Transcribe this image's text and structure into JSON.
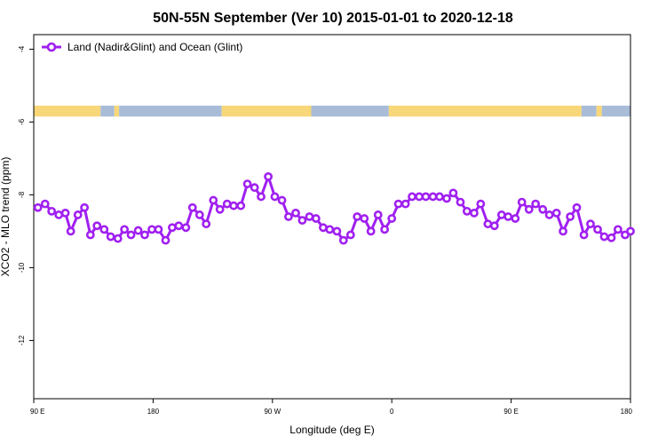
{
  "chart_data": {
    "type": "line",
    "title": "50N-55N September (Ver 10)   2015-01-01 to 2020-12-18",
    "xlabel": "Longitude (deg E)",
    "ylabel": "XCO2 - MLO trend (ppm)",
    "xlim": [
      0,
      100
    ],
    "ylim": [
      -13.6,
      -3.6
    ],
    "x_ticks": [
      {
        "label": "90 E",
        "value": 0
      },
      {
        "label": "180",
        "value": 20
      },
      {
        "label": "90 W",
        "value": 40
      },
      {
        "label": "0",
        "value": 60
      },
      {
        "label": "90 E",
        "value": 80
      },
      {
        "label": "180",
        "value": 100
      }
    ],
    "y_ticks": [
      {
        "label": "-4",
        "value": -4
      },
      {
        "label": "-6",
        "value": -6
      },
      {
        "label": "-8",
        "value": -8
      },
      {
        "label": "-10",
        "value": -10
      },
      {
        "label": "-12",
        "value": -12
      }
    ],
    "legend": {
      "position": "top-left",
      "entries": [
        "Land (Nadir&Glint) and Ocean (Glint)"
      ]
    },
    "colors": {
      "series": "#a020f0",
      "land": "#f8d77a",
      "ocean": "#a8bcd8",
      "background": "#ffffff"
    },
    "surface_strip": {
      "y_range": [
        -5.85,
        -5.55
      ],
      "segments": [
        {
          "type": "land",
          "x0": 0,
          "x1": 11.2
        },
        {
          "type": "ocean",
          "x0": 11.2,
          "x1": 13.5
        },
        {
          "type": "land",
          "x0": 13.5,
          "x1": 14.3
        },
        {
          "type": "ocean",
          "x0": 14.3,
          "x1": 31.5
        },
        {
          "type": "land",
          "x0": 31.5,
          "x1": 46.5
        },
        {
          "type": "ocean",
          "x0": 46.5,
          "x1": 59.5
        },
        {
          "type": "land",
          "x0": 59.5,
          "x1": 91.8
        },
        {
          "type": "ocean",
          "x0": 91.8,
          "x1": 94.3
        },
        {
          "type": "land",
          "x0": 94.3,
          "x1": 95.2
        },
        {
          "type": "ocean",
          "x0": 95.2,
          "x1": 100
        }
      ]
    },
    "series": [
      {
        "name": "Land (Nadir&Glint) and Ocean (Glint)",
        "x": [
          0.7,
          1.9,
          3.0,
          4.2,
          5.3,
          6.2,
          7.4,
          8.5,
          9.5,
          10.6,
          11.8,
          12.9,
          14.1,
          15.2,
          16.3,
          17.5,
          18.6,
          19.8,
          20.9,
          22.1,
          23.2,
          24.3,
          25.5,
          26.6,
          27.8,
          28.9,
          30.1,
          31.2,
          32.4,
          33.5,
          34.7,
          35.8,
          37.0,
          38.1,
          39.3,
          40.4,
          41.6,
          42.7,
          43.9,
          45.0,
          46.2,
          47.3,
          48.5,
          49.6,
          50.8,
          51.9,
          53.1,
          54.2,
          55.4,
          56.5,
          57.7,
          58.8,
          60.0,
          61.1,
          62.3,
          63.4,
          64.6,
          65.7,
          66.9,
          68.0,
          69.2,
          70.3,
          71.5,
          72.6,
          73.8,
          74.9,
          76.1,
          77.2,
          78.4,
          79.5,
          80.7,
          81.8,
          83.0,
          84.1,
          85.3,
          86.4,
          87.6,
          88.7,
          89.9,
          91.0,
          92.2,
          93.3,
          94.5,
          95.6,
          96.8,
          97.9,
          99.1,
          100
        ],
        "y": [
          -8.35,
          -8.25,
          -8.45,
          -8.55,
          -8.5,
          -9.0,
          -8.55,
          -8.35,
          -9.1,
          -8.85,
          -8.95,
          -9.15,
          -9.2,
          -8.95,
          -9.1,
          -8.98,
          -9.1,
          -8.95,
          -8.95,
          -9.25,
          -8.9,
          -8.85,
          -8.9,
          -8.35,
          -8.55,
          -8.8,
          -8.15,
          -8.4,
          -8.25,
          -8.3,
          -8.3,
          -7.7,
          -7.8,
          -8.05,
          -7.5,
          -8.05,
          -8.15,
          -8.6,
          -8.5,
          -8.7,
          -8.6,
          -8.65,
          -8.9,
          -8.95,
          -9.0,
          -9.25,
          -9.1,
          -8.6,
          -8.65,
          -9.0,
          -8.55,
          -8.95,
          -8.65,
          -8.25,
          -8.25,
          -8.05,
          -8.05,
          -8.05,
          -8.05,
          -8.05,
          -8.1,
          -7.95,
          -8.2,
          -8.45,
          -8.5,
          -8.25,
          -8.8,
          -8.85,
          -8.55,
          -8.6,
          -8.65,
          -8.2,
          -8.4,
          -8.25,
          -8.4,
          -8.55,
          -8.5,
          -9.0,
          -8.6,
          -8.35,
          -9.1,
          -8.8,
          -8.95,
          -9.15,
          -9.18,
          -8.95,
          -9.1,
          -9.0
        ]
      }
    ]
  }
}
